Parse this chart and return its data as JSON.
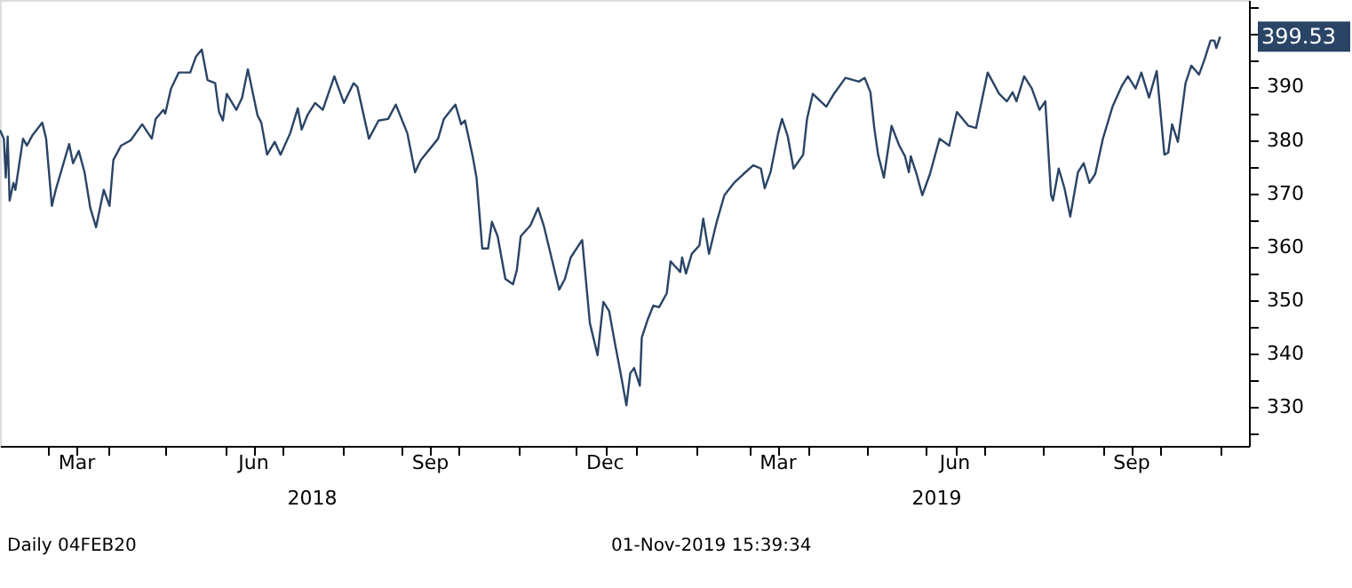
{
  "chart_data": {
    "type": "line",
    "x": [
      "2018-02-04",
      "2018-02-06",
      "2018-02-07",
      "2018-02-08",
      "2018-02-09",
      "2018-02-11",
      "2018-02-12",
      "2018-02-16",
      "2018-02-18",
      "2018-02-21",
      "2018-02-26",
      "2018-02-28",
      "2018-03-03",
      "2018-03-05",
      "2018-03-12",
      "2018-03-14",
      "2018-03-17",
      "2018-03-20",
      "2018-03-23",
      "2018-03-26",
      "2018-03-30",
      "2018-04-02",
      "2018-04-04",
      "2018-04-08",
      "2018-04-13",
      "2018-04-19",
      "2018-04-24",
      "2018-04-26",
      "2018-04-30",
      "2018-05-01",
      "2018-05-04",
      "2018-05-08",
      "2018-05-14",
      "2018-05-17",
      "2018-05-20",
      "2018-05-23",
      "2018-05-27",
      "2018-05-29",
      "2018-05-31",
      "2018-06-02",
      "2018-06-07",
      "2018-06-10",
      "2018-06-13",
      "2018-06-18",
      "2018-06-20",
      "2018-06-23",
      "2018-06-27",
      "2018-06-30",
      "2018-07-05",
      "2018-07-09",
      "2018-07-11",
      "2018-07-14",
      "2018-07-18",
      "2018-07-22",
      "2018-07-28",
      "2018-08-02",
      "2018-08-07",
      "2018-08-09",
      "2018-08-15",
      "2018-08-20",
      "2018-08-25",
      "2018-08-29",
      "2018-09-04",
      "2018-09-08",
      "2018-09-11",
      "2018-09-20",
      "2018-09-23",
      "2018-09-29",
      "2018-10-02",
      "2018-10-04",
      "2018-10-08",
      "2018-10-10",
      "2018-10-13",
      "2018-10-16",
      "2018-10-18",
      "2018-10-21",
      "2018-10-25",
      "2018-10-29",
      "2018-10-31",
      "2018-11-02",
      "2018-11-07",
      "2018-11-11",
      "2018-11-14",
      "2018-11-18",
      "2018-11-22",
      "2018-11-25",
      "2018-11-28",
      "2018-12-04",
      "2018-12-08",
      "2018-12-12",
      "2018-12-15",
      "2018-12-18",
      "2018-12-21",
      "2018-12-24",
      "2018-12-27",
      "2018-12-29",
      "2018-12-31",
      "2019-01-03",
      "2019-01-04",
      "2019-01-07",
      "2019-01-10",
      "2019-01-13",
      "2019-01-17",
      "2019-01-19",
      "2019-01-24",
      "2019-01-25",
      "2019-01-27",
      "2019-01-30",
      "2019-02-03",
      "2019-02-05",
      "2019-02-08",
      "2019-02-12",
      "2019-02-16",
      "2019-02-21",
      "2019-02-26",
      "2019-03-03",
      "2019-03-07",
      "2019-03-09",
      "2019-03-12",
      "2019-03-16",
      "2019-03-18",
      "2019-03-21",
      "2019-03-24",
      "2019-03-29",
      "2019-03-31",
      "2019-04-03",
      "2019-04-10",
      "2019-04-14",
      "2019-04-20",
      "2019-04-27",
      "2019-04-30",
      "2019-05-03",
      "2019-05-05",
      "2019-05-07",
      "2019-05-10",
      "2019-05-14",
      "2019-05-18",
      "2019-05-21",
      "2019-05-23",
      "2019-05-24",
      "2019-05-27",
      "2019-05-30",
      "2019-06-03",
      "2019-06-08",
      "2019-06-13",
      "2019-06-17",
      "2019-06-23",
      "2019-06-27",
      "2019-07-03",
      "2019-07-09",
      "2019-07-13",
      "2019-07-16",
      "2019-07-18",
      "2019-07-22",
      "2019-07-26",
      "2019-07-30",
      "2019-08-02",
      "2019-08-05",
      "2019-08-06",
      "2019-08-09",
      "2019-08-12",
      "2019-08-15",
      "2019-08-19",
      "2019-08-22",
      "2019-08-25",
      "2019-08-28",
      "2019-09-01",
      "2019-09-06",
      "2019-09-11",
      "2019-09-14",
      "2019-09-18",
      "2019-09-21",
      "2019-09-25",
      "2019-09-29",
      "2019-10-03",
      "2019-10-05",
      "2019-10-07",
      "2019-10-10",
      "2019-10-14",
      "2019-10-17",
      "2019-10-21",
      "2019-10-24",
      "2019-10-27",
      "2019-10-29",
      "2019-10-30",
      "2019-11-01"
    ],
    "series": [
      {
        "color": "#2a4466",
        "values": [
          382.0,
          380.4,
          373.1,
          380.8,
          368.8,
          372.1,
          370.8,
          380.4,
          379.1,
          381.1,
          383.4,
          380.4,
          367.8,
          370.8,
          379.4,
          375.8,
          378.1,
          374.1,
          367.4,
          363.8,
          370.8,
          367.8,
          376.4,
          379.1,
          380.1,
          383.1,
          380.4,
          384.1,
          385.8,
          385.1,
          389.8,
          392.8,
          392.8,
          395.8,
          397.1,
          391.4,
          390.8,
          385.4,
          383.8,
          388.8,
          385.8,
          388.1,
          393.4,
          384.8,
          383.4,
          377.4,
          379.8,
          377.4,
          381.4,
          386.1,
          382.1,
          384.8,
          387.1,
          385.8,
          392.1,
          387.1,
          390.8,
          390.1,
          380.4,
          383.8,
          384.1,
          386.8,
          381.4,
          374.1,
          376.4,
          380.4,
          384.1,
          386.8,
          383.1,
          383.8,
          377.1,
          373.1,
          359.8,
          359.8,
          364.8,
          362.1,
          354.1,
          353.1,
          355.8,
          362.1,
          364.1,
          367.4,
          364.1,
          358.1,
          352.1,
          354.1,
          358.1,
          361.4,
          345.8,
          339.8,
          349.8,
          348.1,
          342.1,
          336.4,
          330.4,
          336.4,
          337.4,
          334.1,
          343.1,
          346.4,
          349.1,
          348.8,
          351.4,
          357.4,
          355.4,
          358.1,
          355.1,
          358.8,
          360.4,
          365.4,
          358.8,
          364.8,
          369.8,
          372.1,
          373.8,
          375.4,
          374.8,
          371.1,
          374.1,
          381.4,
          384.1,
          380.8,
          374.8,
          377.4,
          384.1,
          388.8,
          386.4,
          388.8,
          391.8,
          391.1,
          391.8,
          389.1,
          382.4,
          377.4,
          373.1,
          382.8,
          379.1,
          377.1,
          374.1,
          377.1,
          373.8,
          369.8,
          373.8,
          380.4,
          379.1,
          385.4,
          382.8,
          382.4,
          392.8,
          388.8,
          387.4,
          389.1,
          387.4,
          392.1,
          389.8,
          385.8,
          387.4,
          369.8,
          368.8,
          374.8,
          371.1,
          365.8,
          374.1,
          375.8,
          372.1,
          373.8,
          380.4,
          386.4,
          390.4,
          392.1,
          389.8,
          392.8,
          388.1,
          393.1,
          377.4,
          377.8,
          383.1,
          379.8,
          390.8,
          394.1,
          392.4,
          395.4,
          398.8,
          398.8,
          397.4,
          399.53
        ]
      }
    ],
    "xlim": [
      "2018-02-04",
      "2019-11-16"
    ],
    "xticks": [
      {
        "value": "2018-03-01",
        "label": null
      },
      {
        "value": "2018-03-16",
        "label": "Mar"
      },
      {
        "value": "2018-04-01",
        "label": null
      },
      {
        "value": "2018-05-01",
        "label": null
      },
      {
        "value": "2018-06-01",
        "label": null
      },
      {
        "value": "2018-06-16",
        "label": "Jun"
      },
      {
        "value": "2018-07-01",
        "label": null
      },
      {
        "value": "2018-08-01",
        "label": null
      },
      {
        "value": "2018-09-01",
        "label": null
      },
      {
        "value": "2018-09-16",
        "label": "Sep"
      },
      {
        "value": "2018-10-01",
        "label": null
      },
      {
        "value": "2018-11-01",
        "label": null
      },
      {
        "value": "2018-12-01",
        "label": null
      },
      {
        "value": "2018-12-16",
        "label": "Dec"
      },
      {
        "value": "2019-01-01",
        "label": null
      },
      {
        "value": "2019-02-01",
        "label": null
      },
      {
        "value": "2019-03-01",
        "label": null
      },
      {
        "value": "2019-03-16",
        "label": "Mar"
      },
      {
        "value": "2019-04-01",
        "label": null
      },
      {
        "value": "2019-05-01",
        "label": null
      },
      {
        "value": "2019-06-01",
        "label": null
      },
      {
        "value": "2019-06-16",
        "label": "Jun"
      },
      {
        "value": "2019-07-01",
        "label": null
      },
      {
        "value": "2019-08-01",
        "label": null
      },
      {
        "value": "2019-09-01",
        "label": null
      },
      {
        "value": "2019-09-16",
        "label": "Sep"
      },
      {
        "value": "2019-10-01",
        "label": null
      },
      {
        "value": "2019-11-01",
        "label": null
      }
    ],
    "ylim": [
      322.8,
      406.4
    ],
    "yticks": [
      {
        "value": 325,
        "label": null
      },
      330,
      {
        "value": 335,
        "label": null
      },
      340,
      {
        "value": 345,
        "label": null
      },
      350,
      {
        "value": 355,
        "label": null
      },
      360,
      {
        "value": 365,
        "label": null
      },
      370,
      {
        "value": 375,
        "label": null
      },
      380,
      {
        "value": 385,
        "label": null
      },
      390,
      {
        "value": 395,
        "label": null
      },
      {
        "value": 400,
        "label": null
      },
      {
        "value": 405,
        "label": null
      }
    ],
    "annotations": [
      {
        "text": "399.53",
        "x": "2019-11-01",
        "y": 399.53
      },
      "2018",
      "2019",
      "Daily 04FEB20",
      "01-Nov-2019 15:39:34"
    ],
    "grid": false,
    "line_style": "solid",
    "marker": "none"
  }
}
